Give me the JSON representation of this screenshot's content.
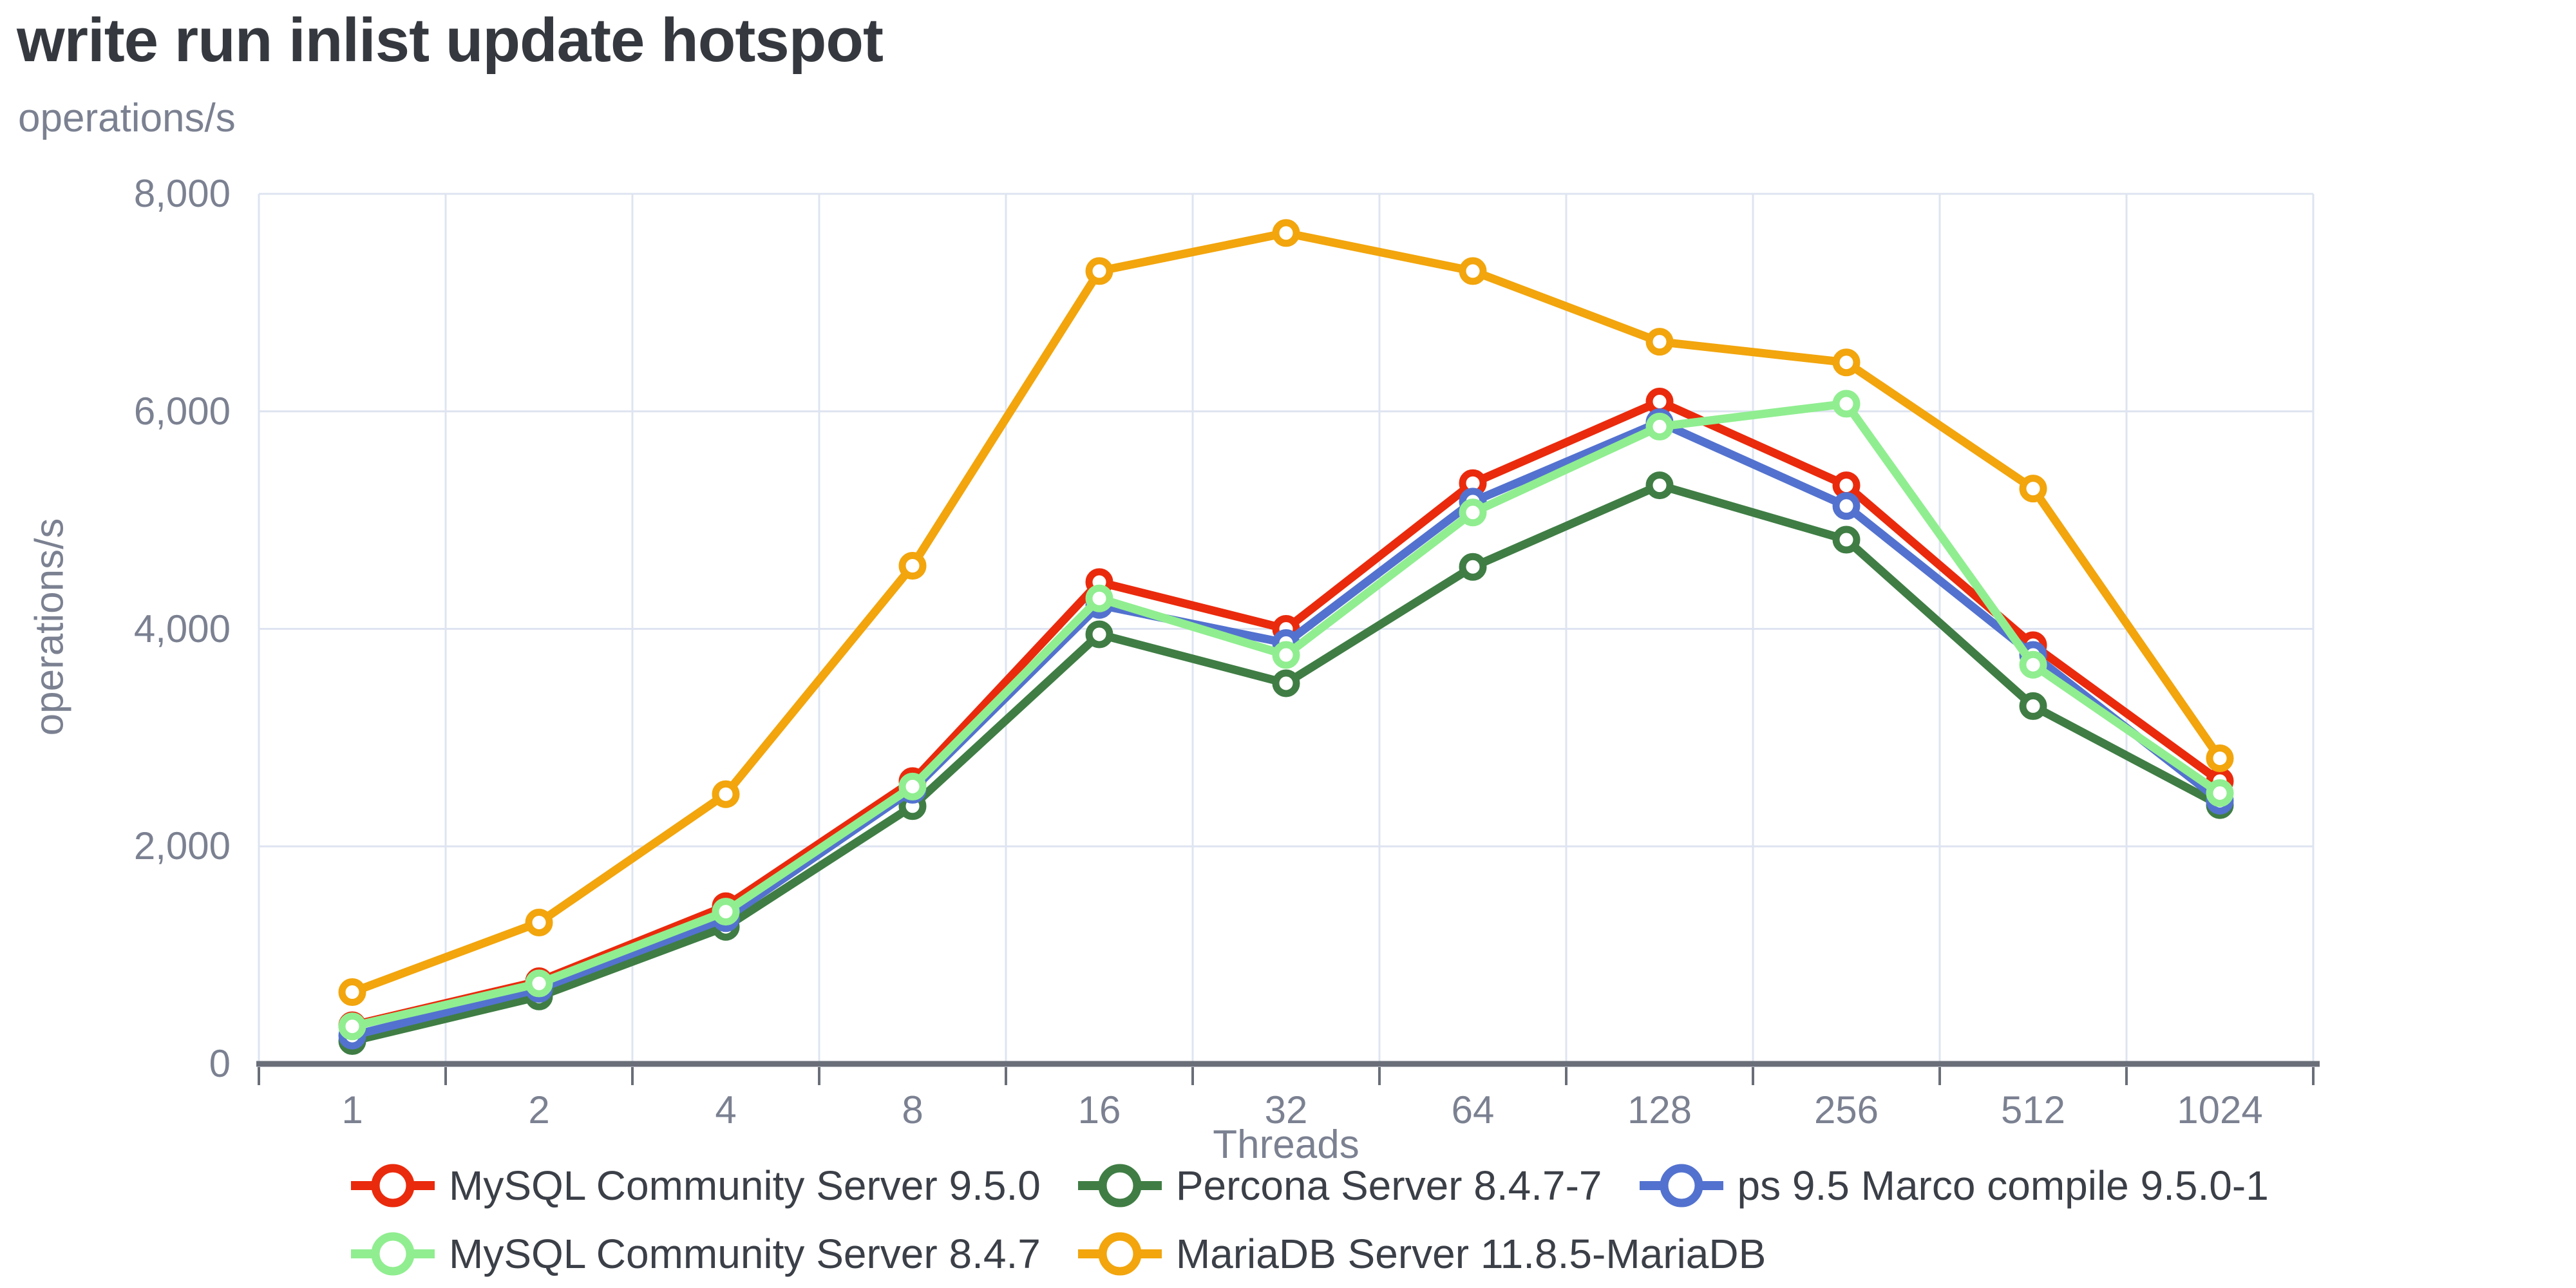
{
  "title": "write run inlist update hotspot",
  "y_axis": {
    "unit_label_top": "operations/s",
    "axis_title": "operations/s",
    "tick_labels": [
      "0",
      "2,000",
      "4,000",
      "6,000",
      "8,000"
    ],
    "tick_values": [
      0,
      2000,
      4000,
      6000,
      8000
    ]
  },
  "x_axis": {
    "axis_title": "Threads",
    "tick_labels": [
      "1",
      "2",
      "4",
      "8",
      "16",
      "32",
      "64",
      "128",
      "256",
      "512",
      "1024"
    ]
  },
  "colors": {
    "grid": "#dee4f0",
    "axis": "#696e78",
    "tick_text": "#7b8191",
    "title_text": "#35393f",
    "legend_text": "#3b3f47",
    "marker_fill": "#ffffff"
  },
  "chart_data": {
    "type": "line",
    "title": "write run inlist update hotspot",
    "xlabel": "Threads",
    "ylabel": "operations/s",
    "x_scale": "categorical (powers of 2)",
    "categories": [
      1,
      2,
      4,
      8,
      16,
      32,
      64,
      128,
      256,
      512,
      1024
    ],
    "ylim": [
      0,
      8000
    ],
    "grid": true,
    "legend_position": "bottom",
    "marker": "open-circle",
    "series": [
      {
        "name": "MySQL Community Server 9.5.0",
        "color": "#ea2a0c",
        "values": [
          355,
          760,
          1450,
          2600,
          4430,
          4000,
          5340,
          6090,
          5320,
          3850,
          2600
        ]
      },
      {
        "name": "Percona Server 8.4.7-7",
        "color": "#3f7d44",
        "values": [
          210,
          620,
          1260,
          2370,
          3950,
          3500,
          4570,
          5320,
          4820,
          3290,
          2380
        ]
      },
      {
        "name": "ps 9.5 Marco compile 9.5.0-1",
        "color": "#5372cf",
        "values": [
          260,
          690,
          1340,
          2520,
          4220,
          3870,
          5170,
          5900,
          5130,
          3760,
          2420
        ]
      },
      {
        "name": "MySQL Community Server 8.4.7",
        "color": "#90ee90",
        "values": [
          345,
          740,
          1400,
          2550,
          4280,
          3760,
          5070,
          5860,
          6070,
          3670,
          2490
        ]
      },
      {
        "name": "MariaDB Server 11.8.5-MariaDB",
        "color": "#f2a50c",
        "values": [
          660,
          1300,
          2480,
          4580,
          7290,
          7640,
          7290,
          6640,
          6450,
          5290,
          2810
        ]
      }
    ],
    "legend_rows": [
      [
        0,
        1,
        2
      ],
      [
        3,
        4
      ]
    ]
  }
}
